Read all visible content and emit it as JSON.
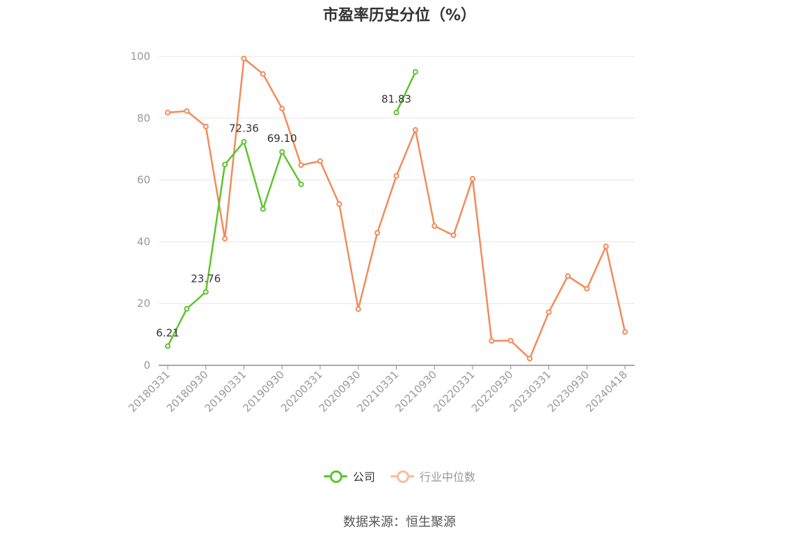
{
  "title": "市盈率历史分位（%）",
  "source": "数据来源：恒生聚源",
  "legend": {
    "company": "公司",
    "industry": "行业中位数"
  },
  "colors": {
    "company": "#5cc42c",
    "industry": "#f28b5a",
    "industry_legend": "#f8bba0",
    "grid": "#e6e6e6",
    "axis": "#8c8c9a"
  },
  "chart_data": {
    "type": "line",
    "ylim": [
      0,
      100
    ],
    "yticks": [
      0,
      20,
      40,
      60,
      80,
      100
    ],
    "x_tick_labels": [
      "20180331",
      "20180930",
      "20190331",
      "20190930",
      "20200331",
      "20200930",
      "20210331",
      "20210930",
      "20220331",
      "20220930",
      "20230331",
      "20230930",
      "20240418"
    ],
    "x": [
      "20180331",
      "20180630",
      "20180930",
      "20181231",
      "20190331",
      "20190630",
      "20190930",
      "20191231",
      "20200331",
      "20200630",
      "20200930",
      "20201231",
      "20210331",
      "20210630",
      "20210930",
      "20211231",
      "20220331",
      "20220630",
      "20220930",
      "20221231",
      "20230331",
      "20230630",
      "20230930",
      "20231231",
      "20240418"
    ],
    "series": [
      {
        "name": "公司",
        "values": [
          6.21,
          18.3,
          23.76,
          65.0,
          72.36,
          50.6,
          69.1,
          58.6,
          null,
          null,
          null,
          null,
          81.83,
          95.0,
          null,
          null,
          null,
          null,
          null,
          null,
          null,
          null,
          null,
          null,
          null
        ],
        "labels": [
          "6.21",
          "",
          "23.76",
          "",
          "72.36",
          "",
          "69.10",
          "",
          "",
          "",
          "",
          "",
          "81.83",
          "",
          "",
          "",
          "",
          "",
          "",
          "",
          "",
          "",
          "",
          "",
          ""
        ]
      },
      {
        "name": "行业中位数",
        "values": [
          81.8,
          82.3,
          77.3,
          41.0,
          99.3,
          94.3,
          83.1,
          64.8,
          66.1,
          52.2,
          18.2,
          42.9,
          61.3,
          76.2,
          45.1,
          42.1,
          60.4,
          7.9,
          8.0,
          2.2,
          17.2,
          28.9,
          24.8,
          38.5,
          10.8
        ]
      }
    ]
  }
}
